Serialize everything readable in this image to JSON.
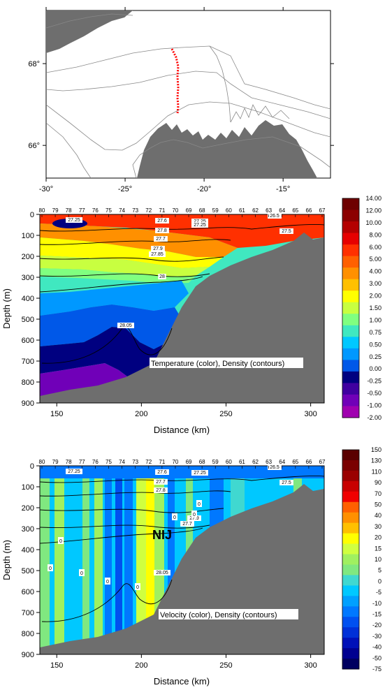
{
  "chart_data": [
    {
      "type": "map",
      "x_ticks": [
        "-30°",
        "-25°",
        "-20°",
        "-15°"
      ],
      "x_tick_values": [
        -30,
        -25,
        -20,
        -15
      ],
      "y_ticks": [
        "68°",
        "66°"
      ],
      "y_tick_values": [
        68,
        66
      ],
      "xlim": [
        -30,
        -12
      ],
      "ylim": [
        65.2,
        69.3
      ],
      "section_color": "#ff0000",
      "land_color": "#6e6e6e"
    },
    {
      "type": "heatmap",
      "xlabel": "Distance (km)",
      "ylabel": "Depth (m)",
      "xlim": [
        140,
        308
      ],
      "ylim": [
        900,
        0
      ],
      "x_ticks": [
        150,
        200,
        250,
        300
      ],
      "y_ticks": [
        0,
        100,
        200,
        300,
        400,
        500,
        600,
        700,
        800,
        900
      ],
      "station_labels": [
        "80",
        "79",
        "78",
        "77",
        "76",
        "75",
        "74",
        "73",
        "72",
        "71",
        "70",
        "69",
        "68",
        "59",
        "60",
        "61",
        "62",
        "63",
        "64",
        "65",
        "66",
        "67"
      ],
      "annotation": "Temperature (color), Density (contours)",
      "contour_labels": [
        "27.25",
        "27.6",
        "27.25",
        "27.8",
        "27.7",
        "27.5",
        "27.9",
        "27.85",
        "28",
        "28.05",
        "26.5",
        "27.25"
      ],
      "colorbar_labels": [
        "14.00",
        "12.00",
        "10.00",
        "8.00",
        "6.00",
        "5.00",
        "4.00",
        "3.00",
        "2.00",
        "1.50",
        "1.00",
        "0.75",
        "0.50",
        "0.25",
        "0.00",
        "-0.25",
        "-0.50",
        "-1.00",
        "-2.00"
      ],
      "colorbar_colors": [
        "#6e0000",
        "#8c0000",
        "#b40000",
        "#e60000",
        "#ff3000",
        "#ff6000",
        "#ff9000",
        "#ffc000",
        "#ffff00",
        "#c8ff40",
        "#80ff80",
        "#40e8c0",
        "#00c8ff",
        "#0098ff",
        "#0058e8",
        "#000080",
        "#4000a0",
        "#7000b8",
        "#a000b0"
      ]
    },
    {
      "type": "heatmap",
      "xlabel": "Distance (km)",
      "ylabel": "Depth (m)",
      "xlim": [
        140,
        308
      ],
      "ylim": [
        900,
        0
      ],
      "x_ticks": [
        150,
        200,
        250,
        300
      ],
      "y_ticks": [
        0,
        100,
        200,
        300,
        400,
        500,
        600,
        700,
        800,
        900
      ],
      "station_labels": [
        "80",
        "79",
        "78",
        "77",
        "76",
        "75",
        "74",
        "73",
        "72",
        "71",
        "70",
        "69",
        "68",
        "59",
        "60",
        "61",
        "62",
        "63",
        "64",
        "65",
        "66",
        "67"
      ],
      "annotation": "Velocity (color), Density (contours)",
      "region_label": "NIJ",
      "contour_labels": [
        "27.25",
        "27.6",
        "27.25",
        "27.7",
        "27.8",
        "27.5",
        "27.9",
        "27.7",
        "28.05",
        "26.5"
      ],
      "zero_labels": [
        "0",
        "0",
        "0",
        "0",
        "0",
        "0",
        "0",
        "0"
      ],
      "colorbar_labels": [
        "150",
        "130",
        "110",
        "90",
        "70",
        "50",
        "40",
        "30",
        "20",
        "15",
        "10",
        "5",
        "0",
        "-5",
        "-10",
        "-15",
        "-20",
        "-30",
        "-40",
        "-50",
        "-75"
      ],
      "colorbar_colors": [
        "#5a0000",
        "#7a0000",
        "#9a0000",
        "#c80000",
        "#f00000",
        "#ff6000",
        "#ff9000",
        "#ffc000",
        "#ffff00",
        "#d0ff40",
        "#a0f060",
        "#80e880",
        "#40d8d0",
        "#00c8ff",
        "#00a0ff",
        "#0078ff",
        "#0050f0",
        "#0030d8",
        "#0010b8",
        "#000090",
        "#000060"
      ]
    }
  ]
}
